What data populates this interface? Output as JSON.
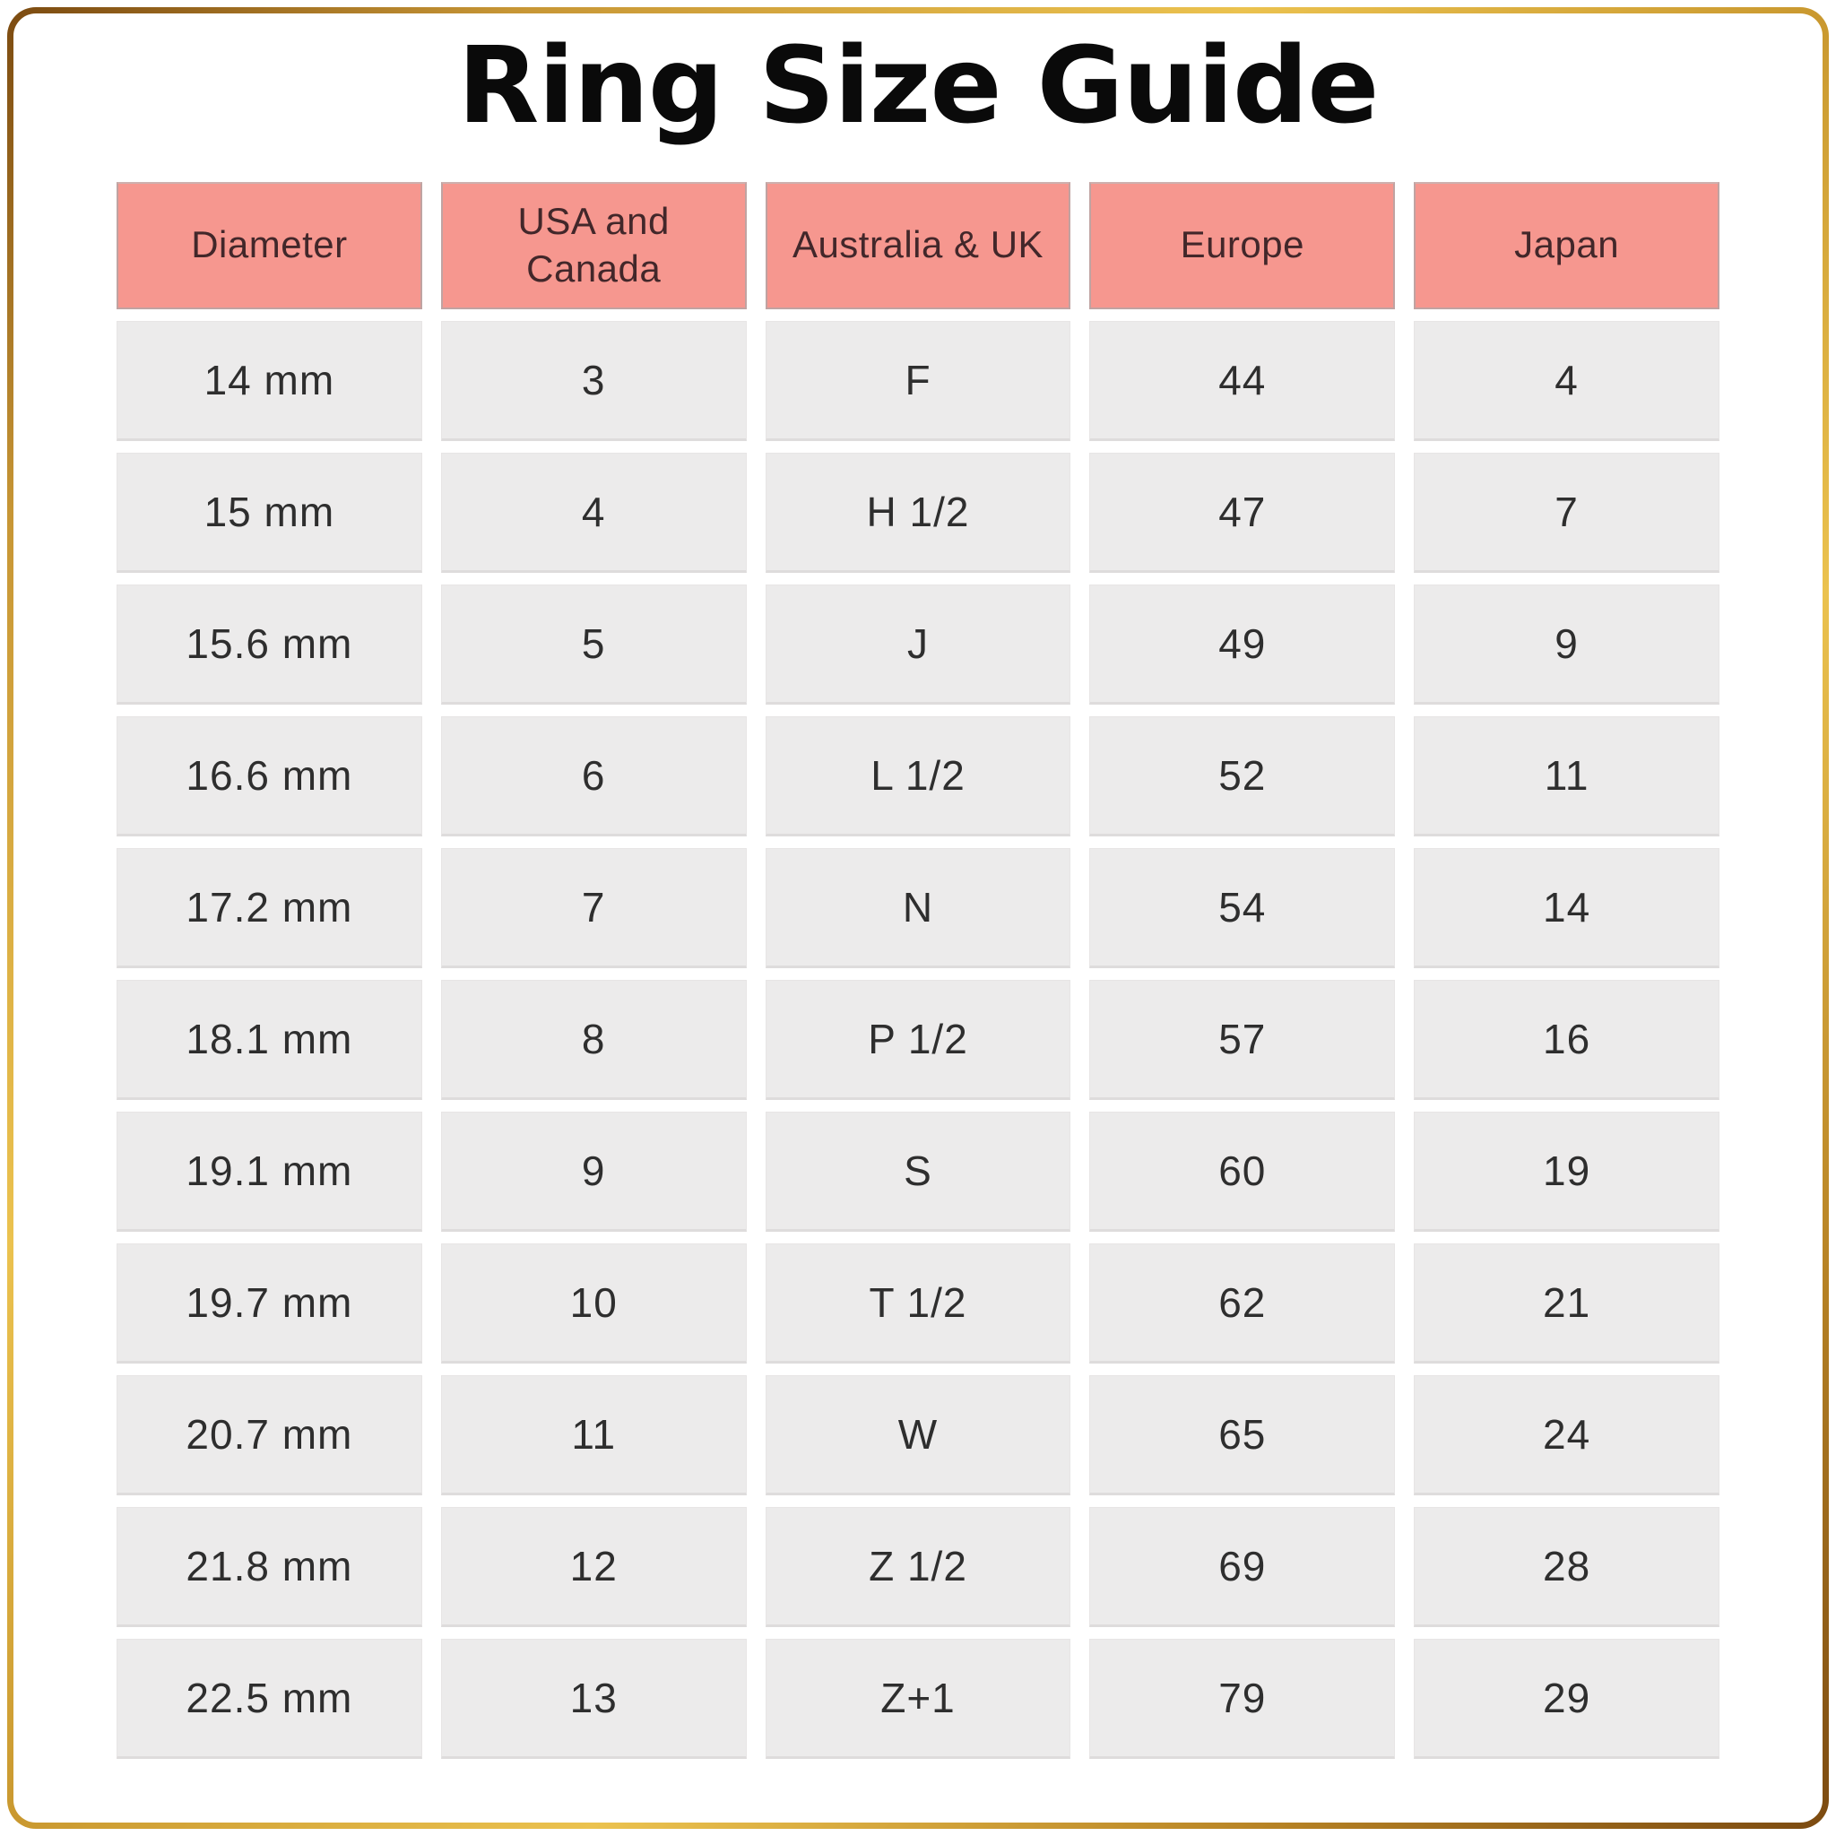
{
  "title": "Ring Size Guide",
  "table": {
    "headers": [
      "Diameter",
      "USA and Canada",
      "Australia & UK",
      "Europe",
      "Japan"
    ],
    "rows": [
      [
        "14 mm",
        "3",
        "F",
        "44",
        "4"
      ],
      [
        "15 mm",
        "4",
        "H 1/2",
        "47",
        "7"
      ],
      [
        "15.6 mm",
        "5",
        "J",
        "49",
        "9"
      ],
      [
        "16.6 mm",
        "6",
        "L 1/2",
        "52",
        "11"
      ],
      [
        "17.2 mm",
        "7",
        "N",
        "54",
        "14"
      ],
      [
        "18.1 mm",
        "8",
        "P 1/2",
        "57",
        "16"
      ],
      [
        "19.1 mm",
        "9",
        "S",
        "60",
        "19"
      ],
      [
        "19.7 mm",
        "10",
        "T 1/2",
        "62",
        "21"
      ],
      [
        "20.7 mm",
        "11",
        "W",
        "65",
        "24"
      ],
      [
        "21.8 mm",
        "12",
        "Z 1/2",
        "69",
        "28"
      ],
      [
        "22.5 mm",
        "13",
        "Z+1",
        "79",
        "29"
      ]
    ]
  },
  "chart_data": {
    "type": "table",
    "title": "Ring Size Guide",
    "columns": [
      "Diameter",
      "USA and Canada",
      "Australia & UK",
      "Europe",
      "Japan"
    ],
    "rows": [
      [
        "14 mm",
        "3",
        "F",
        "44",
        "4"
      ],
      [
        "15 mm",
        "4",
        "H 1/2",
        "47",
        "7"
      ],
      [
        "15.6 mm",
        "5",
        "J",
        "49",
        "9"
      ],
      [
        "16.6 mm",
        "6",
        "L 1/2",
        "52",
        "11"
      ],
      [
        "17.2 mm",
        "7",
        "N",
        "54",
        "14"
      ],
      [
        "18.1 mm",
        "8",
        "P 1/2",
        "57",
        "16"
      ],
      [
        "19.1 mm",
        "9",
        "S",
        "60",
        "19"
      ],
      [
        "19.7 mm",
        "10",
        "T 1/2",
        "62",
        "21"
      ],
      [
        "20.7 mm",
        "11",
        "W",
        "65",
        "24"
      ],
      [
        "21.8 mm",
        "12",
        "Z 1/2",
        "69",
        "28"
      ],
      [
        "22.5 mm",
        "13",
        "Z+1",
        "79",
        "29"
      ]
    ]
  },
  "colors": {
    "header_bg": "#F6978F",
    "header_text": "#42272A",
    "cell_bg": "#ECEBEB",
    "cell_text": "#2E2E2E",
    "title_text": "#0A0A0A",
    "frame_gold_dark": "#7B4A10",
    "frame_gold_light": "#EBC24F",
    "background": "#FFFFFF"
  }
}
